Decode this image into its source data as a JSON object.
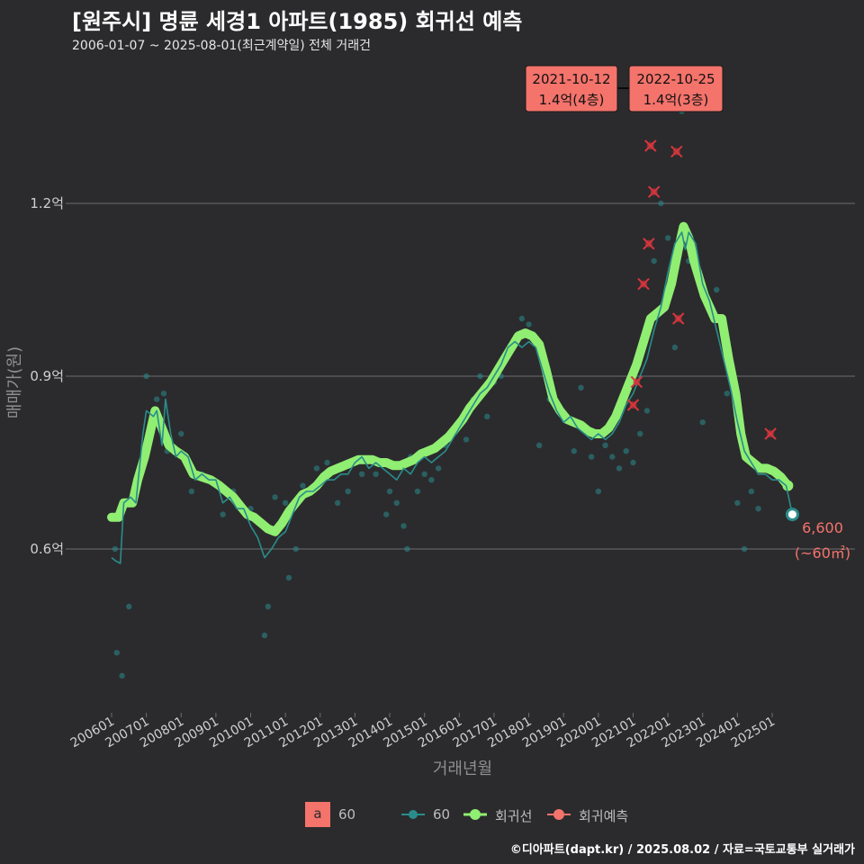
{
  "title": "[원주시] 명륜 세경1 아파트(1985) 회귀선 예측",
  "subtitle": "2006-01-07 ~ 2025-08-01(최근계약일) 전체 거래건",
  "footer": "©디아파트(dapt.kr) / 2025.08.02 / 자료=국토교통부 실거래가",
  "legend": {
    "area_key_letter": "a",
    "area_label": "60",
    "series_60_label": "60",
    "regression_label": "회귀선",
    "prediction_label": "회귀예측"
  },
  "colors": {
    "background": "#2b2b2d",
    "grid": "#6e6e6e",
    "series_60": "#2a8c8c",
    "regression": "#90ee72",
    "prediction": "#d9363e",
    "annotation_box": "#f4736b",
    "last_label": "#f4736b"
  },
  "chart_data": {
    "type": "line",
    "xlabel": "거래년월",
    "ylabel": "매매가(원)",
    "ylim": [
      0.35,
      1.32
    ],
    "y_unit": "억",
    "yticks": [
      0.6,
      0.9,
      1.2
    ],
    "ytick_labels": [
      "0.6억",
      "0.9억",
      "1.2억"
    ],
    "x_range": [
      2005.5,
      2026.2
    ],
    "xtick_labels": [
      "200601",
      "200701",
      "200801",
      "200901",
      "201001",
      "201101",
      "201201",
      "201301",
      "201401",
      "201501",
      "201601",
      "201701",
      "201801",
      "201901",
      "202001",
      "202101",
      "202201",
      "202301",
      "202401",
      "202501"
    ],
    "xtick_values": [
      2006,
      2007,
      2008,
      2009,
      2010,
      2011,
      2012,
      2013,
      2014,
      2015,
      2016,
      2017,
      2018,
      2019,
      2020,
      2021,
      2022,
      2023,
      2024,
      2025
    ],
    "series": [
      {
        "name": "60",
        "points": [
          [
            2006.0,
            0.585
          ],
          [
            2006.1,
            0.58
          ],
          [
            2006.25,
            0.575
          ],
          [
            2006.35,
            0.68
          ],
          [
            2006.55,
            0.69
          ],
          [
            2006.7,
            0.68
          ],
          [
            2006.9,
            0.8
          ],
          [
            2007.0,
            0.84
          ],
          [
            2007.2,
            0.83
          ],
          [
            2007.3,
            0.84
          ],
          [
            2007.45,
            0.78
          ],
          [
            2007.55,
            0.86
          ],
          [
            2007.7,
            0.8
          ],
          [
            2007.85,
            0.76
          ],
          [
            2008.0,
            0.77
          ],
          [
            2008.2,
            0.76
          ],
          [
            2008.4,
            0.72
          ],
          [
            2008.6,
            0.73
          ],
          [
            2008.8,
            0.72
          ],
          [
            2009.0,
            0.72
          ],
          [
            2009.2,
            0.68
          ],
          [
            2009.4,
            0.69
          ],
          [
            2009.6,
            0.67
          ],
          [
            2009.8,
            0.67
          ],
          [
            2010.0,
            0.64
          ],
          [
            2010.2,
            0.62
          ],
          [
            2010.4,
            0.585
          ],
          [
            2010.6,
            0.6
          ],
          [
            2010.8,
            0.62
          ],
          [
            2011.0,
            0.63
          ],
          [
            2011.2,
            0.66
          ],
          [
            2011.4,
            0.69
          ],
          [
            2011.6,
            0.7
          ],
          [
            2011.8,
            0.7
          ],
          [
            2012.0,
            0.71
          ],
          [
            2012.2,
            0.72
          ],
          [
            2012.4,
            0.72
          ],
          [
            2012.6,
            0.73
          ],
          [
            2012.8,
            0.73
          ],
          [
            2013.0,
            0.75
          ],
          [
            2013.2,
            0.76
          ],
          [
            2013.4,
            0.74
          ],
          [
            2013.6,
            0.75
          ],
          [
            2013.8,
            0.74
          ],
          [
            2014.0,
            0.73
          ],
          [
            2014.2,
            0.72
          ],
          [
            2014.4,
            0.74
          ],
          [
            2014.6,
            0.73
          ],
          [
            2014.8,
            0.75
          ],
          [
            2015.0,
            0.76
          ],
          [
            2015.2,
            0.75
          ],
          [
            2015.4,
            0.76
          ],
          [
            2015.6,
            0.77
          ],
          [
            2015.8,
            0.79
          ],
          [
            2016.0,
            0.81
          ],
          [
            2016.2,
            0.83
          ],
          [
            2016.4,
            0.85
          ],
          [
            2016.6,
            0.87
          ],
          [
            2016.8,
            0.88
          ],
          [
            2017.0,
            0.9
          ],
          [
            2017.2,
            0.92
          ],
          [
            2017.4,
            0.95
          ],
          [
            2017.6,
            0.96
          ],
          [
            2017.8,
            0.95
          ],
          [
            2018.0,
            0.96
          ],
          [
            2018.2,
            0.95
          ],
          [
            2018.4,
            0.91
          ],
          [
            2018.6,
            0.87
          ],
          [
            2018.8,
            0.84
          ],
          [
            2019.0,
            0.82
          ],
          [
            2019.2,
            0.83
          ],
          [
            2019.4,
            0.81
          ],
          [
            2019.6,
            0.8
          ],
          [
            2019.8,
            0.79
          ],
          [
            2020.0,
            0.8
          ],
          [
            2020.2,
            0.79
          ],
          [
            2020.4,
            0.8
          ],
          [
            2020.6,
            0.82
          ],
          [
            2020.8,
            0.85
          ],
          [
            2021.0,
            0.87
          ],
          [
            2021.2,
            0.9
          ],
          [
            2021.4,
            0.93
          ],
          [
            2021.6,
            0.98
          ],
          [
            2021.8,
            1.02
          ],
          [
            2022.0,
            1.08
          ],
          [
            2022.2,
            1.13
          ],
          [
            2022.4,
            1.15
          ],
          [
            2022.5,
            1.12
          ],
          [
            2022.6,
            1.15
          ],
          [
            2022.8,
            1.13
          ],
          [
            2023.0,
            1.06
          ],
          [
            2023.2,
            1.03
          ],
          [
            2023.4,
            0.98
          ],
          [
            2023.6,
            0.93
          ],
          [
            2023.8,
            0.88
          ],
          [
            2024.0,
            0.82
          ],
          [
            2024.2,
            0.77
          ],
          [
            2024.4,
            0.75
          ],
          [
            2024.6,
            0.73
          ],
          [
            2024.8,
            0.73
          ],
          [
            2025.0,
            0.72
          ],
          [
            2025.2,
            0.72
          ],
          [
            2025.4,
            0.71
          ],
          [
            2025.58,
            0.66
          ]
        ]
      },
      {
        "name": "회귀선",
        "points": [
          [
            2006.0,
            0.655
          ],
          [
            2006.2,
            0.655
          ],
          [
            2006.35,
            0.68
          ],
          [
            2006.6,
            0.68
          ],
          [
            2006.75,
            0.72
          ],
          [
            2006.95,
            0.76
          ],
          [
            2007.1,
            0.8
          ],
          [
            2007.25,
            0.84
          ],
          [
            2007.45,
            0.81
          ],
          [
            2007.65,
            0.78
          ],
          [
            2007.85,
            0.77
          ],
          [
            2008.1,
            0.76
          ],
          [
            2008.35,
            0.73
          ],
          [
            2008.6,
            0.725
          ],
          [
            2008.85,
            0.72
          ],
          [
            2009.1,
            0.71
          ],
          [
            2009.3,
            0.7
          ],
          [
            2009.5,
            0.69
          ],
          [
            2009.7,
            0.675
          ],
          [
            2009.9,
            0.66
          ],
          [
            2010.1,
            0.655
          ],
          [
            2010.3,
            0.645
          ],
          [
            2010.5,
            0.635
          ],
          [
            2010.7,
            0.63
          ],
          [
            2010.9,
            0.645
          ],
          [
            2011.1,
            0.665
          ],
          [
            2011.3,
            0.68
          ],
          [
            2011.5,
            0.695
          ],
          [
            2011.7,
            0.7
          ],
          [
            2011.9,
            0.71
          ],
          [
            2012.1,
            0.725
          ],
          [
            2012.3,
            0.735
          ],
          [
            2012.5,
            0.74
          ],
          [
            2012.7,
            0.745
          ],
          [
            2012.9,
            0.75
          ],
          [
            2013.1,
            0.755
          ],
          [
            2013.3,
            0.755
          ],
          [
            2013.5,
            0.755
          ],
          [
            2013.7,
            0.75
          ],
          [
            2013.9,
            0.75
          ],
          [
            2014.1,
            0.745
          ],
          [
            2014.3,
            0.745
          ],
          [
            2014.5,
            0.75
          ],
          [
            2014.7,
            0.755
          ],
          [
            2014.9,
            0.765
          ],
          [
            2015.1,
            0.77
          ],
          [
            2015.3,
            0.775
          ],
          [
            2015.5,
            0.785
          ],
          [
            2015.7,
            0.795
          ],
          [
            2015.9,
            0.81
          ],
          [
            2016.1,
            0.825
          ],
          [
            2016.3,
            0.845
          ],
          [
            2016.5,
            0.86
          ],
          [
            2016.7,
            0.875
          ],
          [
            2016.9,
            0.89
          ],
          [
            2017.1,
            0.91
          ],
          [
            2017.3,
            0.93
          ],
          [
            2017.5,
            0.95
          ],
          [
            2017.7,
            0.97
          ],
          [
            2017.9,
            0.975
          ],
          [
            2018.1,
            0.97
          ],
          [
            2018.3,
            0.955
          ],
          [
            2018.5,
            0.91
          ],
          [
            2018.7,
            0.86
          ],
          [
            2018.9,
            0.84
          ],
          [
            2019.1,
            0.825
          ],
          [
            2019.3,
            0.82
          ],
          [
            2019.5,
            0.815
          ],
          [
            2019.7,
            0.805
          ],
          [
            2019.9,
            0.8
          ],
          [
            2020.1,
            0.8
          ],
          [
            2020.3,
            0.81
          ],
          [
            2020.5,
            0.83
          ],
          [
            2020.7,
            0.86
          ],
          [
            2020.9,
            0.89
          ],
          [
            2021.1,
            0.92
          ],
          [
            2021.3,
            0.96
          ],
          [
            2021.5,
            1.0
          ],
          [
            2021.7,
            1.01
          ],
          [
            2021.9,
            1.02
          ],
          [
            2022.1,
            1.06
          ],
          [
            2022.3,
            1.12
          ],
          [
            2022.45,
            1.16
          ],
          [
            2022.6,
            1.14
          ],
          [
            2022.75,
            1.1
          ],
          [
            2022.9,
            1.07
          ],
          [
            2023.05,
            1.04
          ],
          [
            2023.2,
            1.02
          ],
          [
            2023.35,
            1.0
          ],
          [
            2023.55,
            1.0
          ],
          [
            2023.75,
            0.93
          ],
          [
            2023.95,
            0.87
          ],
          [
            2024.1,
            0.8
          ],
          [
            2024.25,
            0.76
          ],
          [
            2024.45,
            0.75
          ],
          [
            2024.65,
            0.74
          ],
          [
            2024.85,
            0.74
          ],
          [
            2025.05,
            0.735
          ],
          [
            2025.25,
            0.725
          ],
          [
            2025.45,
            0.71
          ]
        ]
      },
      {
        "name": "회귀예측",
        "points": [
          [
            2021.0,
            0.85
          ],
          [
            2021.1,
            0.89
          ],
          [
            2021.3,
            1.06
          ],
          [
            2021.45,
            1.13
          ],
          [
            2021.5,
            1.3
          ],
          [
            2021.6,
            1.22
          ],
          [
            2022.25,
            1.29
          ],
          [
            2022.3,
            1.0
          ],
          [
            2024.95,
            0.8
          ]
        ]
      }
    ],
    "scatter": [
      [
        2006.1,
        0.6
      ],
      [
        2006.15,
        0.42
      ],
      [
        2006.3,
        0.38
      ],
      [
        2006.5,
        0.5
      ],
      [
        2006.7,
        0.7
      ],
      [
        2007.0,
        0.9
      ],
      [
        2007.3,
        0.86
      ],
      [
        2007.5,
        0.87
      ],
      [
        2007.6,
        0.77
      ],
      [
        2008.0,
        0.8
      ],
      [
        2008.3,
        0.7
      ],
      [
        2008.6,
        0.73
      ],
      [
        2009.2,
        0.66
      ],
      [
        2009.5,
        0.7
      ],
      [
        2010.0,
        0.67
      ],
      [
        2010.4,
        0.45
      ],
      [
        2010.5,
        0.5
      ],
      [
        2010.7,
        0.69
      ],
      [
        2011.0,
        0.68
      ],
      [
        2011.1,
        0.55
      ],
      [
        2011.3,
        0.6
      ],
      [
        2011.5,
        0.71
      ],
      [
        2011.9,
        0.74
      ],
      [
        2012.2,
        0.75
      ],
      [
        2012.5,
        0.68
      ],
      [
        2012.8,
        0.7
      ],
      [
        2013.2,
        0.73
      ],
      [
        2013.6,
        0.73
      ],
      [
        2013.9,
        0.66
      ],
      [
        2014.0,
        0.7
      ],
      [
        2014.2,
        0.68
      ],
      [
        2014.4,
        0.64
      ],
      [
        2014.5,
        0.6
      ],
      [
        2014.6,
        0.76
      ],
      [
        2014.8,
        0.7
      ],
      [
        2015.0,
        0.73
      ],
      [
        2015.2,
        0.72
      ],
      [
        2015.4,
        0.74
      ],
      [
        2015.6,
        0.78
      ],
      [
        2015.8,
        0.8
      ],
      [
        2016.0,
        0.82
      ],
      [
        2016.2,
        0.79
      ],
      [
        2016.4,
        0.86
      ],
      [
        2016.6,
        0.9
      ],
      [
        2016.8,
        0.83
      ],
      [
        2017.0,
        0.89
      ],
      [
        2017.2,
        0.9
      ],
      [
        2017.4,
        0.94
      ],
      [
        2017.6,
        0.96
      ],
      [
        2017.8,
        1.0
      ],
      [
        2018.0,
        0.99
      ],
      [
        2018.3,
        0.78
      ],
      [
        2018.6,
        0.86
      ],
      [
        2019.0,
        0.83
      ],
      [
        2019.3,
        0.77
      ],
      [
        2019.5,
        0.88
      ],
      [
        2019.8,
        0.76
      ],
      [
        2020.0,
        0.7
      ],
      [
        2020.2,
        0.78
      ],
      [
        2020.4,
        0.76
      ],
      [
        2020.6,
        0.74
      ],
      [
        2020.8,
        0.77
      ],
      [
        2021.0,
        0.75
      ],
      [
        2021.2,
        0.8
      ],
      [
        2021.4,
        0.84
      ],
      [
        2021.6,
        1.1
      ],
      [
        2021.8,
        1.2
      ],
      [
        2022.0,
        1.14
      ],
      [
        2022.2,
        0.95
      ],
      [
        2022.4,
        1.36
      ],
      [
        2022.6,
        1.1
      ],
      [
        2023.0,
        0.82
      ],
      [
        2023.4,
        1.05
      ],
      [
        2023.7,
        0.87
      ],
      [
        2024.0,
        0.68
      ],
      [
        2024.2,
        0.6
      ],
      [
        2024.4,
        0.7
      ],
      [
        2024.6,
        0.67
      ]
    ],
    "annotations": [
      {
        "date": "2021-10-12",
        "price": "1.4억(4층)"
      },
      {
        "date": "2022-10-25",
        "price": "1.4억(3층)"
      }
    ],
    "last_point": {
      "x": 2025.58,
      "y": 0.66,
      "value_label": "6,600",
      "area_label": "(~60㎡)"
    }
  }
}
